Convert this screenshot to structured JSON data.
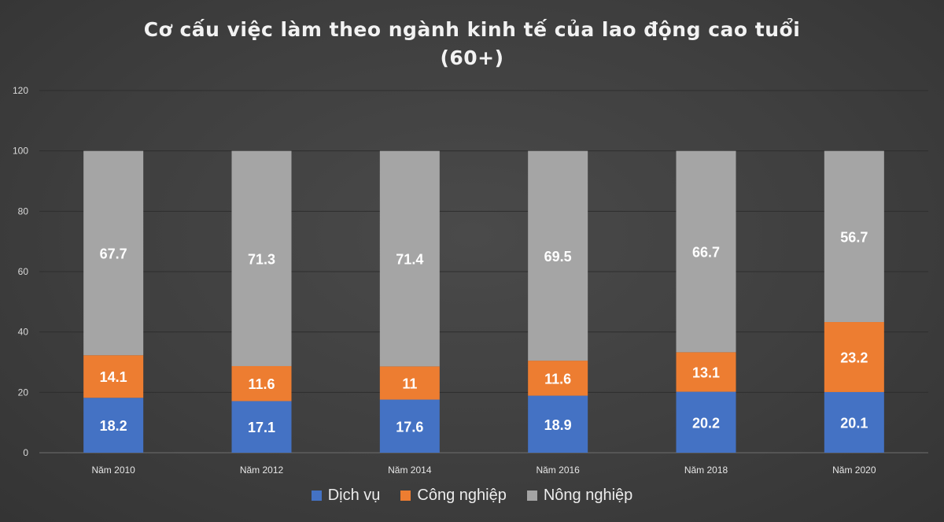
{
  "chart_data": {
    "type": "bar",
    "stacked": true,
    "title": [
      "Cơ cấu việc làm theo ngành kinh tế của lao động cao tuổi",
      "(60+)"
    ],
    "categories": [
      "Năm 2010",
      "Năm 2012",
      "Năm 2014",
      "Năm 2016",
      "Năm 2018",
      "Năm 2020"
    ],
    "series": [
      {
        "name": "Dịch vụ",
        "color": "#4472c4",
        "values": [
          18.2,
          17.1,
          17.6,
          18.9,
          20.2,
          20.1
        ]
      },
      {
        "name": "Công nghiệp",
        "color": "#ed7d31",
        "values": [
          14.1,
          11.6,
          11,
          11.6,
          13.1,
          23.2
        ]
      },
      {
        "name": "Nông nghiệp",
        "color": "#a5a5a5",
        "values": [
          67.7,
          71.3,
          71.4,
          69.5,
          66.7,
          56.7
        ]
      }
    ],
    "yticks": [
      "0",
      "20",
      "40",
      "60",
      "80",
      "100",
      "120"
    ],
    "ylim": [
      0,
      120
    ],
    "grid": true,
    "legend_position": "bottom"
  }
}
